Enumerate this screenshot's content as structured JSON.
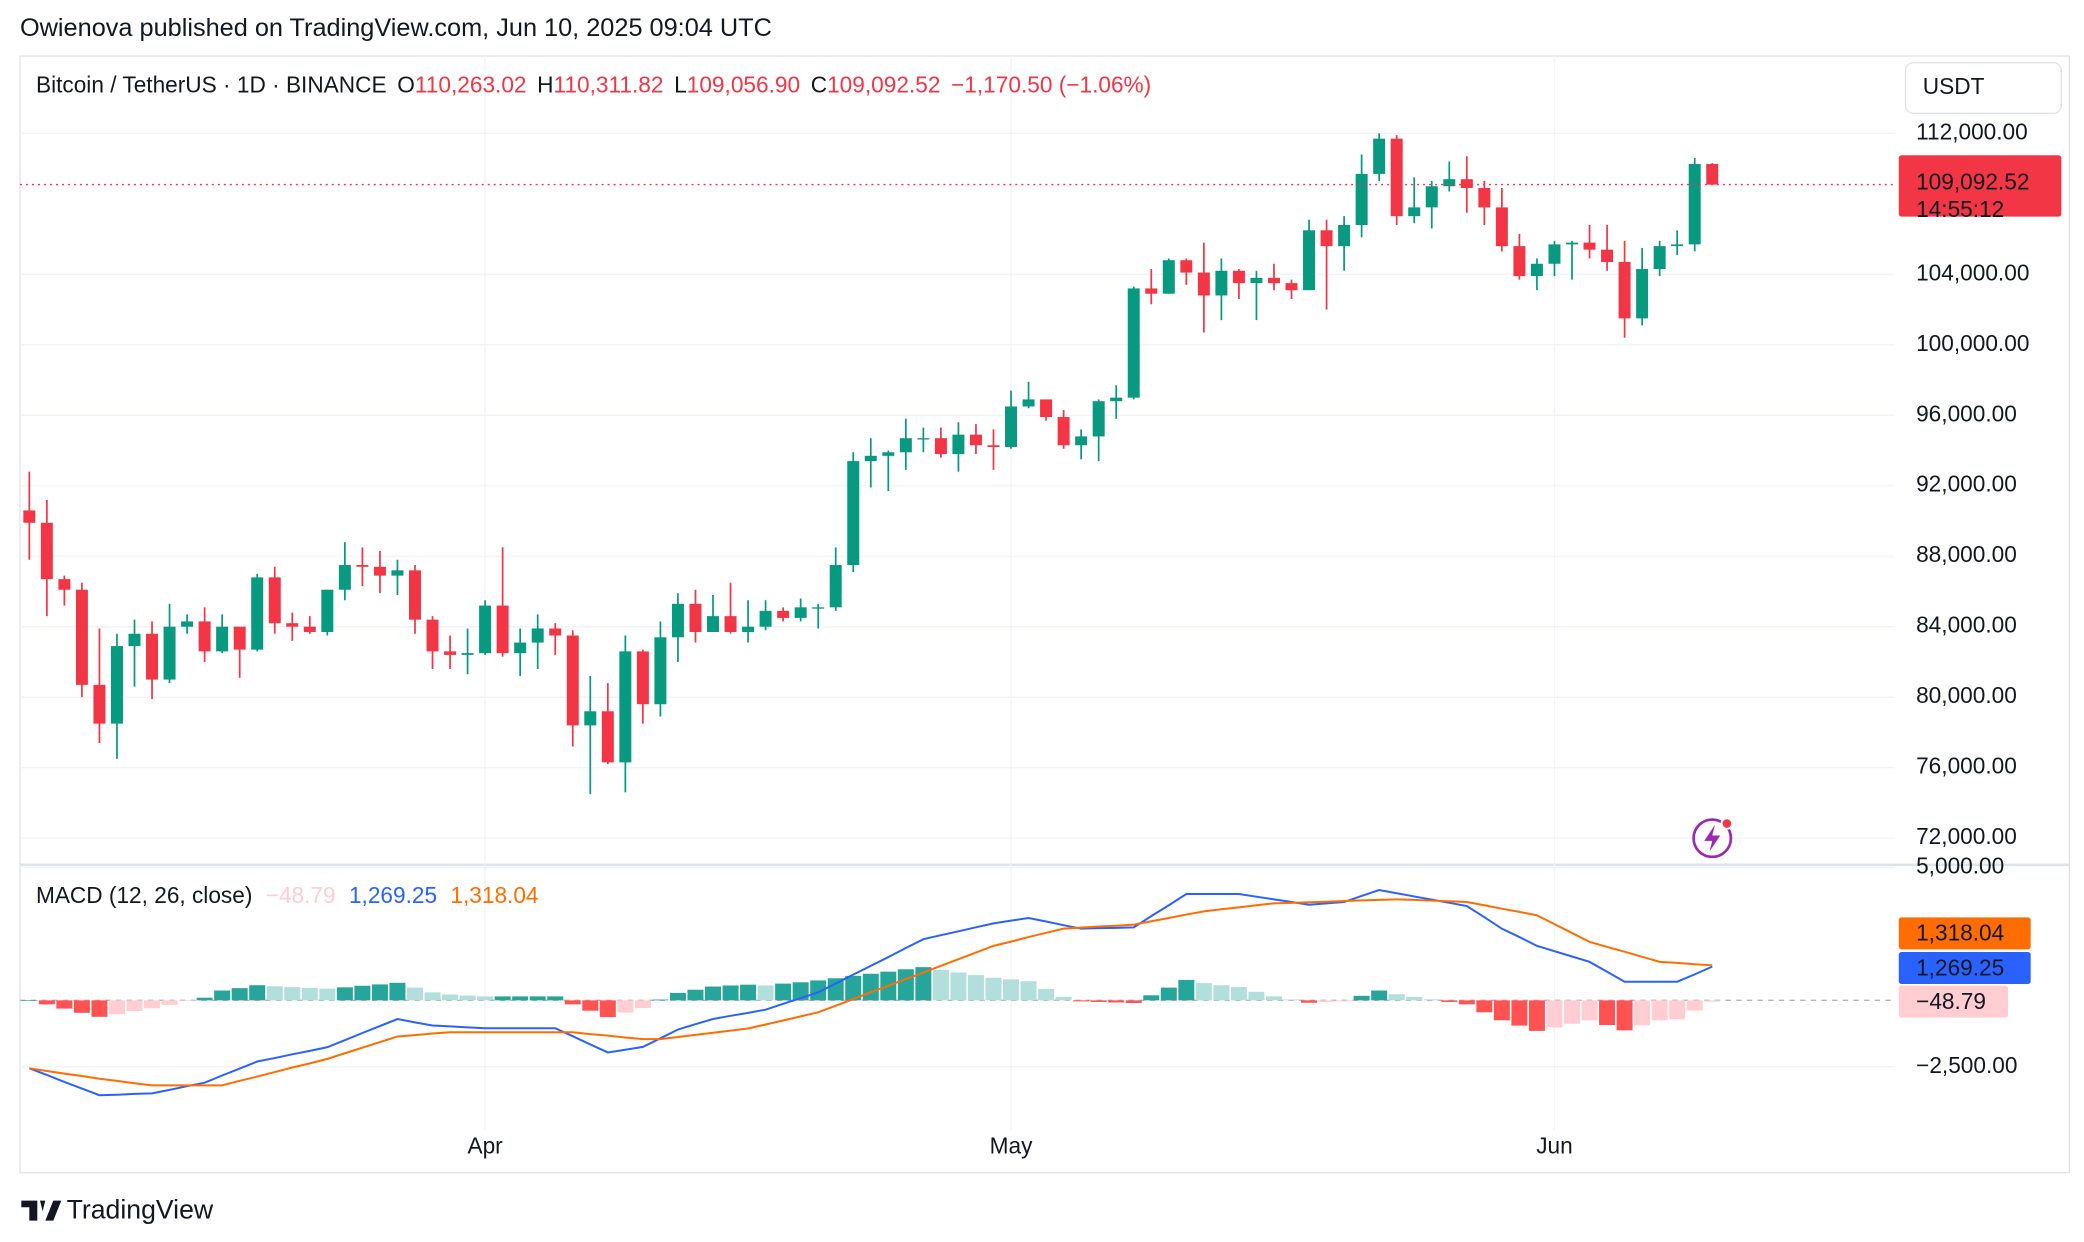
{
  "header": {
    "byline": "Owienova published on TradingView.com, Jun 10, 2025 09:04 UTC"
  },
  "footer": {
    "brand": "TradingView"
  },
  "chart_data": [
    {
      "type": "candlestick",
      "legend": {
        "symbol": "Bitcoin / TetherUS · 1D · BINANCE",
        "ohlc": [
          {
            "key": "O",
            "text": "110,263.02"
          },
          {
            "key": "H",
            "text": "110,311.82"
          },
          {
            "key": "L",
            "text": "109,056.90"
          },
          {
            "key": "C",
            "text": "109,092.52"
          }
        ],
        "change": "−1,170.50 (−1.06%)"
      },
      "axis_unit": "USDT",
      "up_color": "#089981",
      "down_color": "#f23645",
      "grid": true,
      "categories": [
        null,
        null,
        null,
        null,
        null,
        null,
        null,
        null,
        null,
        null,
        null,
        null,
        null,
        null,
        null,
        null,
        null,
        null,
        null,
        null,
        null,
        null,
        null,
        null,
        null,
        null,
        "Apr",
        null,
        null,
        null,
        null,
        null,
        null,
        null,
        null,
        null,
        null,
        null,
        null,
        null,
        null,
        null,
        null,
        null,
        null,
        null,
        null,
        null,
        null,
        null,
        null,
        null,
        null,
        null,
        null,
        null,
        "May",
        null,
        null,
        null,
        null,
        null,
        null,
        null,
        null,
        null,
        null,
        null,
        null,
        null,
        null,
        null,
        null,
        null,
        null,
        null,
        null,
        null,
        null,
        null,
        null,
        null,
        null,
        null,
        null,
        null,
        null,
        "Jun",
        null,
        null,
        null,
        null,
        null,
        null,
        null,
        null,
        null
      ],
      "open": [
        90600,
        89900,
        86700,
        86100,
        80700,
        78500,
        82900,
        83600,
        81000,
        84000,
        84300,
        82600,
        84000,
        82700,
        86800,
        84200,
        84000,
        83700,
        86100,
        87500,
        87400,
        86900,
        87200,
        84400,
        82600,
        82400,
        82500,
        85200,
        82500,
        83100,
        83900,
        83500,
        78400,
        79200,
        76300,
        82600,
        79600,
        83400,
        85300,
        83700,
        84600,
        83700,
        84000,
        84900,
        84500,
        85100,
        85100,
        87500,
        93400,
        93700,
        93900,
        94700,
        94700,
        93800,
        94900,
        94300,
        94200,
        96500,
        96900,
        95900,
        94300,
        94800,
        96800,
        97000,
        103200,
        102900,
        104800,
        104100,
        102800,
        104200,
        103500,
        103800,
        103500,
        103100,
        106500,
        105600,
        106800,
        109700,
        111700,
        107300,
        107800,
        109000,
        109400,
        108900,
        107800,
        105600,
        103900,
        104600,
        105700,
        105800,
        105400,
        104700,
        101500,
        104300,
        105600,
        105700,
        110263.02
      ],
      "high": [
        92800,
        91200,
        86900,
        86500,
        83900,
        83600,
        84400,
        84300,
        85300,
        84700,
        85100,
        84700,
        84000,
        87000,
        87400,
        84800,
        84600,
        86100,
        88800,
        88500,
        88300,
        87800,
        87500,
        84600,
        83500,
        83900,
        85500,
        88500,
        83900,
        84700,
        84200,
        83800,
        81200,
        80800,
        83500,
        82700,
        84300,
        85900,
        86100,
        85800,
        86500,
        85500,
        85500,
        85100,
        85600,
        85300,
        88500,
        93900,
        94700,
        94000,
        95800,
        95300,
        95300,
        95600,
        95500,
        95200,
        97400,
        97900,
        96900,
        96300,
        95200,
        96900,
        97700,
        103300,
        104300,
        104900,
        104900,
        105800,
        104900,
        104300,
        104200,
        104600,
        103700,
        107100,
        107100,
        107300,
        110800,
        112000,
        111900,
        109500,
        109300,
        110400,
        110700,
        109300,
        108900,
        106300,
        104900,
        105900,
        105900,
        106800,
        106800,
        105900,
        105500,
        105900,
        106500,
        110600,
        110311.82
      ],
      "low": [
        87800,
        84600,
        85200,
        80000,
        77400,
        76500,
        80600,
        79900,
        80800,
        83600,
        82000,
        82500,
        81100,
        82600,
        83600,
        83200,
        83600,
        83500,
        85500,
        86300,
        85900,
        85800,
        83600,
        81600,
        81600,
        81300,
        82400,
        82300,
        81200,
        81600,
        82400,
        77200,
        74500,
        76200,
        74600,
        78500,
        78900,
        82000,
        83100,
        83700,
        83600,
        83100,
        83800,
        84300,
        84300,
        83900,
        84900,
        87100,
        91900,
        91700,
        92900,
        93900,
        93600,
        92800,
        93800,
        92900,
        94100,
        96400,
        95700,
        94100,
        93500,
        93400,
        95800,
        96900,
        102300,
        102900,
        103400,
        100700,
        101400,
        102600,
        101400,
        103100,
        102600,
        103100,
        102000,
        104200,
        106100,
        109300,
        106800,
        106900,
        106600,
        108700,
        107500,
        106800,
        105300,
        103700,
        103100,
        103900,
        103700,
        104900,
        104200,
        100400,
        101100,
        103900,
        105100,
        105300,
        109056.9
      ],
      "close": [
        89900,
        86700,
        86100,
        80700,
        78500,
        82900,
        83600,
        81000,
        84000,
        84300,
        82600,
        84000,
        82700,
        86800,
        84200,
        84000,
        83700,
        86100,
        87500,
        87400,
        86900,
        87200,
        84400,
        82600,
        82400,
        82500,
        85200,
        82500,
        83100,
        83900,
        83500,
        78400,
        79200,
        76300,
        82600,
        79600,
        83400,
        85300,
        83700,
        84600,
        83700,
        84000,
        84900,
        84500,
        85100,
        85100,
        87500,
        93400,
        93700,
        93900,
        94700,
        94700,
        93800,
        94900,
        94300,
        94200,
        96500,
        96900,
        95900,
        94300,
        94800,
        96800,
        97000,
        103200,
        102900,
        104800,
        104100,
        102800,
        104200,
        103500,
        103800,
        103500,
        103100,
        106500,
        105600,
        106800,
        109700,
        111700,
        107300,
        107800,
        109000,
        109400,
        108900,
        107800,
        105600,
        103900,
        104600,
        105700,
        105800,
        105400,
        104700,
        101500,
        104300,
        105600,
        105700,
        110263.02,
        109092.52
      ],
      "last_price": {
        "value": 109092.52,
        "label": "109,092.52",
        "countdown": "14:55:12"
      },
      "ylim": [
        70560,
        116390
      ],
      "yticks": [
        {
          "value": 72000,
          "label": "72,000.00"
        },
        {
          "value": 76000,
          "label": "76,000.00"
        },
        {
          "value": 80000,
          "label": "80,000.00"
        },
        {
          "value": 84000,
          "label": "84,000.00"
        },
        {
          "value": 88000,
          "label": "88,000.00"
        },
        {
          "value": 92000,
          "label": "92,000.00"
        },
        {
          "value": 96000,
          "label": "96,000.00"
        },
        {
          "value": 100000,
          "label": "100,000.00"
        },
        {
          "value": 104000,
          "label": "104,000.00"
        },
        {
          "value": 112000,
          "label": "112,000.00"
        }
      ]
    },
    {
      "type": "macd",
      "title": "MACD (12, 26, close)",
      "series": [
        {
          "type": "histogram",
          "colors": {
            "grow_above": "#26a69a",
            "fall_above": "#b2dfdb",
            "grow_below": "#ffcdd2",
            "fall_below": "#ff5252"
          },
          "value_label": "−48.79",
          "values": [
            0,
            -150,
            -310,
            -470,
            -620,
            -520,
            -400,
            -300,
            -170,
            -30,
            100,
            370,
            460,
            570,
            530,
            500,
            470,
            440,
            490,
            550,
            600,
            660,
            480,
            300,
            220,
            180,
            150,
            150,
            150,
            150,
            150,
            -150,
            -390,
            -630,
            -460,
            -290,
            30,
            280,
            400,
            520,
            560,
            590,
            560,
            630,
            680,
            750,
            830,
            920,
            1000,
            1080,
            1170,
            1250,
            1150,
            1050,
            950,
            850,
            790,
            720,
            430,
            130,
            -40,
            -60,
            -80,
            -100,
            190,
            480,
            770,
            650,
            570,
            500,
            320,
            150,
            30,
            -90,
            -60,
            -40,
            170,
            370,
            230,
            130,
            40,
            -60,
            -150,
            -450,
            -750,
            -950,
            -1150,
            -1020,
            -880,
            -750,
            -930,
            -1130,
            -940,
            -750,
            -710,
            -380,
            -48.79
          ]
        },
        {
          "type": "line",
          "color": "#2962ff",
          "value_label": "1,269.25",
          "values": [
            -2560,
            -2810,
            -3070,
            -3320,
            -3570,
            -3550,
            -3520,
            -3500,
            -3370,
            -3230,
            -3100,
            -2830,
            -2570,
            -2300,
            -2170,
            -2030,
            -1900,
            -1760,
            -1500,
            -1230,
            -970,
            -700,
            -830,
            -950,
            -980,
            -1020,
            -1050,
            -1050,
            -1050,
            -1050,
            -1050,
            -1350,
            -1660,
            -1960,
            -1860,
            -1750,
            -1430,
            -1100,
            -900,
            -700,
            -580,
            -470,
            -350,
            -130,
            80,
            300,
            630,
            970,
            1300,
            1630,
            1970,
            2300,
            2450,
            2600,
            2750,
            2900,
            3000,
            3100,
            2970,
            2830,
            2700,
            2720,
            2730,
            2750,
            3170,
            3580,
            4000,
            4000,
            4000,
            4000,
            3900,
            3800,
            3700,
            3600,
            3650,
            3700,
            3930,
            4150,
            4030,
            3910,
            3790,
            3670,
            3550,
            3130,
            2700,
            2380,
            2050,
            1850,
            1650,
            1450,
            1080,
            700,
            700,
            700,
            700,
            980,
            1269.25
          ]
        },
        {
          "type": "line",
          "color": "#ff6d00",
          "value_label": "1,318.04",
          "values": [
            -2560,
            -2660,
            -2760,
            -2850,
            -2950,
            -3030,
            -3120,
            -3200,
            -3200,
            -3200,
            -3200,
            -3200,
            -3030,
            -2870,
            -2700,
            -2530,
            -2370,
            -2200,
            -1990,
            -1780,
            -1570,
            -1360,
            -1310,
            -1250,
            -1200,
            -1200,
            -1200,
            -1200,
            -1200,
            -1200,
            -1200,
            -1200,
            -1270,
            -1330,
            -1400,
            -1460,
            -1460,
            -1380,
            -1300,
            -1220,
            -1140,
            -1060,
            -910,
            -760,
            -600,
            -450,
            -200,
            50,
            300,
            550,
            800,
            1050,
            1300,
            1550,
            1800,
            2050,
            2210,
            2380,
            2540,
            2700,
            2740,
            2780,
            2810,
            2850,
            2980,
            3100,
            3230,
            3350,
            3430,
            3500,
            3580,
            3650,
            3670,
            3690,
            3710,
            3740,
            3760,
            3780,
            3800,
            3780,
            3750,
            3730,
            3700,
            3580,
            3450,
            3330,
            3200,
            2870,
            2530,
            2200,
            2010,
            1830,
            1640,
            1450,
            1410,
            1360,
            1318.04
          ]
        }
      ],
      "ylim": [
        -4880,
        5050
      ],
      "yticks": [
        {
          "value": -2500,
          "label": "−2,500.00"
        },
        {
          "value": 5000,
          "label": "5,000.00"
        }
      ]
    }
  ]
}
